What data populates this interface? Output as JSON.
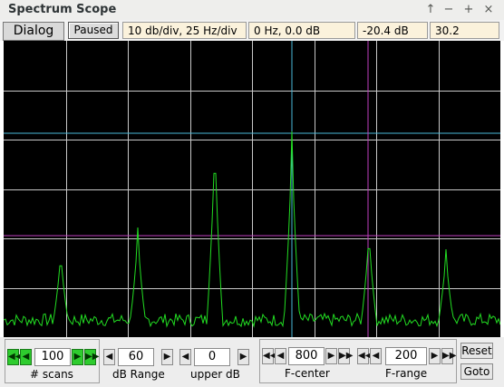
{
  "window": {
    "title": "Spectrum Scope",
    "btn_pin": "↑",
    "btn_min": "−",
    "btn_max": "+",
    "btn_close": "×"
  },
  "toolbar": {
    "dialog_label": "Dialog",
    "paused_label": "Paused",
    "scale_readout": "10 db/div, 25 Hz/div",
    "cursor_readout": "0 Hz, 0.0 dB",
    "level_readout": "-20.4 dB",
    "value_readout": "30.2"
  },
  "scope": {
    "background": "#000000",
    "grid_color": "#c8c8c8",
    "trace_color": "#22dd22",
    "cursor1_color": "#4ab8d8",
    "cursor2_color": "#c040c0"
  },
  "controls": {
    "scans": {
      "value": "100",
      "label": "# scans"
    },
    "db_range": {
      "value": "60",
      "label": "dB Range"
    },
    "upper_db": {
      "value": "0",
      "label": "upper dB"
    },
    "f_center": {
      "value": "800",
      "label": "F-center"
    },
    "f_range": {
      "value": "200",
      "label": "F-range"
    },
    "reset_label": "Reset",
    "goto_label": "Goto"
  },
  "glyphs": {
    "first": "◀◀",
    "prev": "◀",
    "next": "▶",
    "last": "▶▶"
  }
}
